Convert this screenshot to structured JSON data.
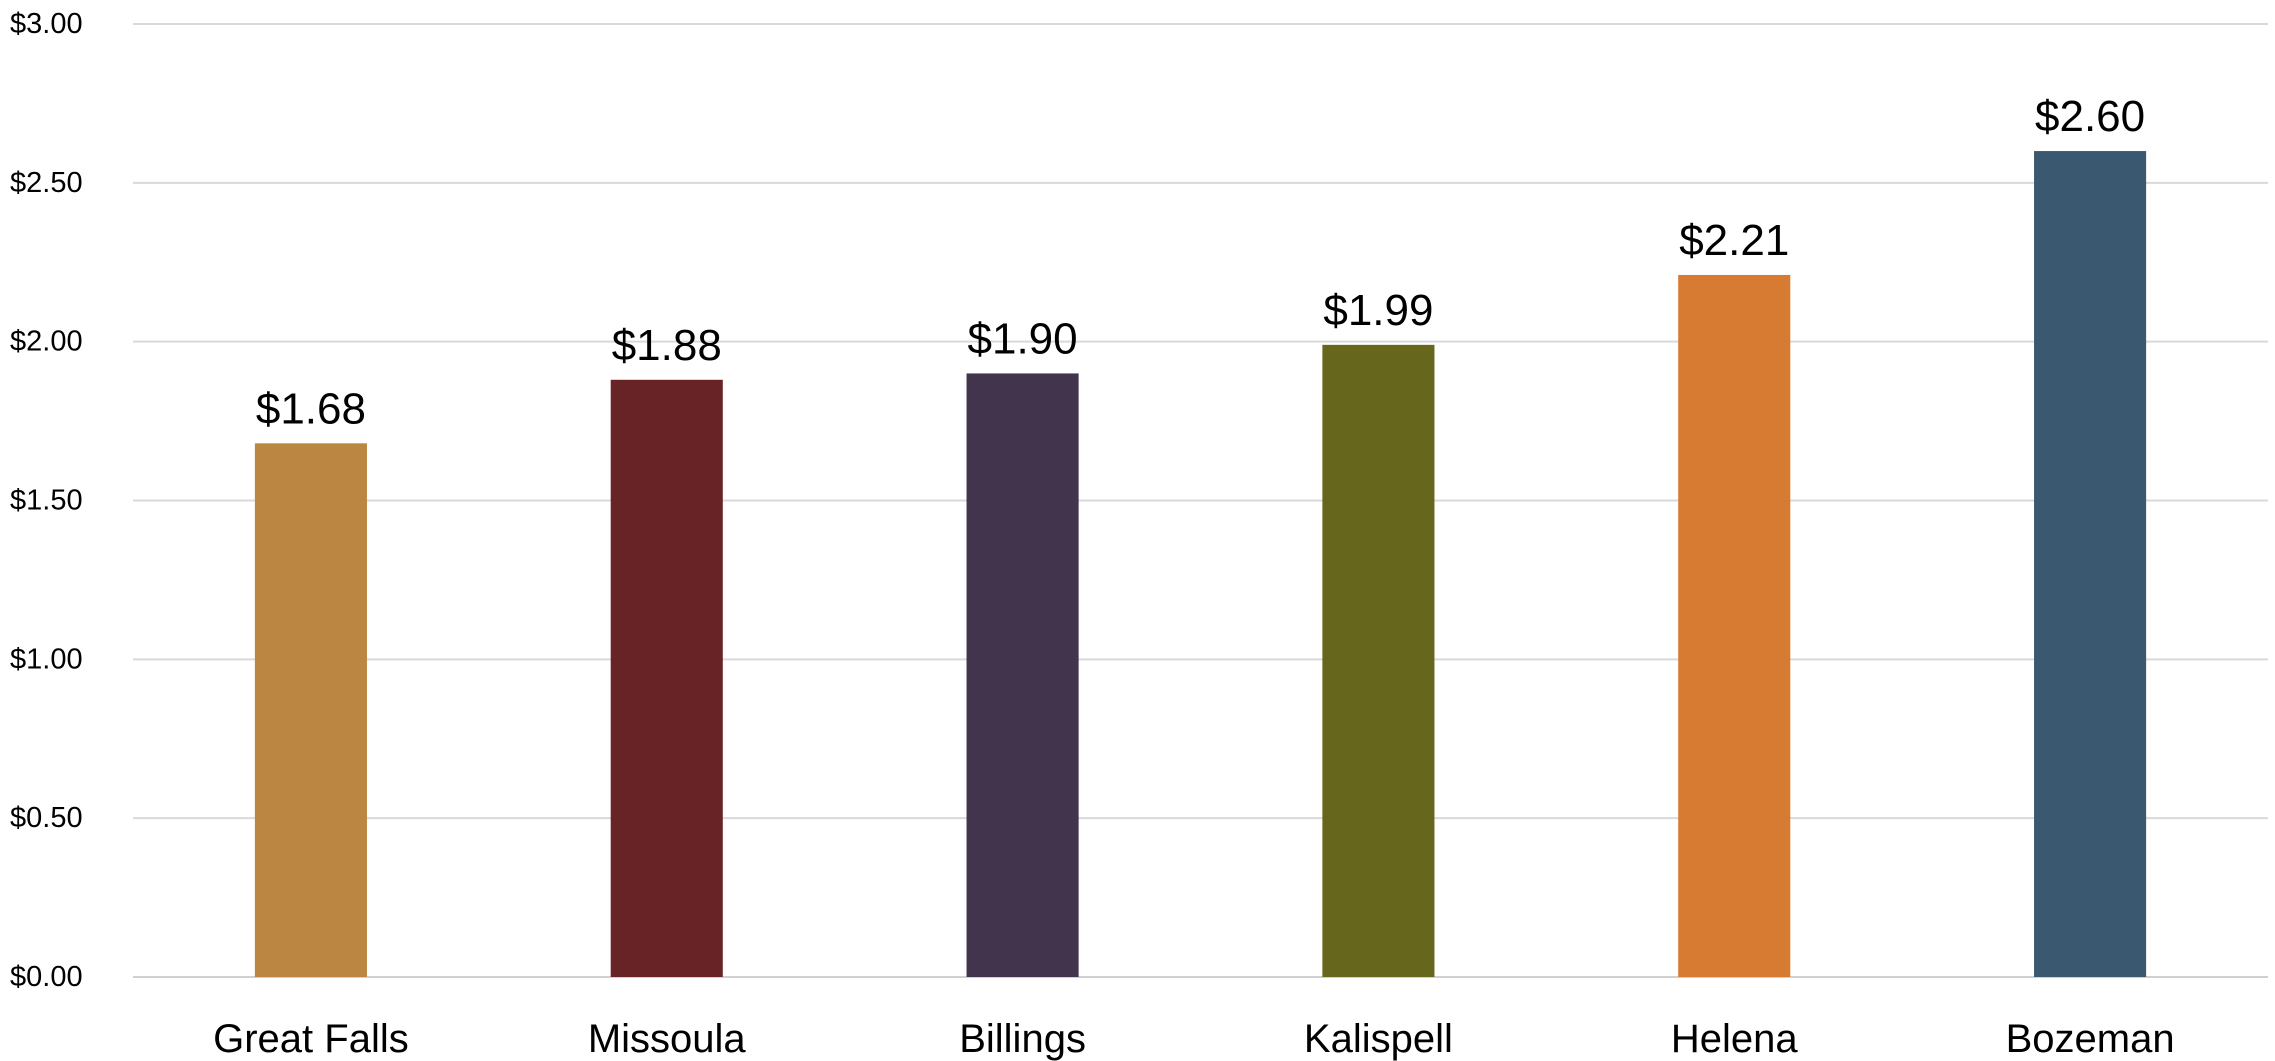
{
  "chart_data": {
    "type": "bar",
    "title": "",
    "xlabel": "",
    "ylabel": "",
    "categories": [
      "Great Falls",
      "Missoula",
      "Billings",
      "Kalispell",
      "Helena",
      "Bozeman"
    ],
    "values": [
      1.68,
      1.88,
      1.9,
      1.99,
      2.21,
      2.6
    ],
    "data_labels": [
      "$1.68",
      "$1.88",
      "$1.90",
      "$1.99",
      "$2.21",
      "$2.60"
    ],
    "colors": [
      "#BA8641",
      "#672326",
      "#42344C",
      "#66671D",
      "#D77A32",
      "#3A5870"
    ],
    "ylim": [
      0,
      3
    ],
    "y_ticks": [
      0,
      0.5,
      1,
      1.5,
      2,
      2.5,
      3
    ],
    "y_tick_labels": [
      "$0.00",
      "$0.50",
      "$1.00",
      "$1.50",
      "$2.00",
      "$2.50",
      "$3.00"
    ],
    "grid": true,
    "legend": "none"
  }
}
